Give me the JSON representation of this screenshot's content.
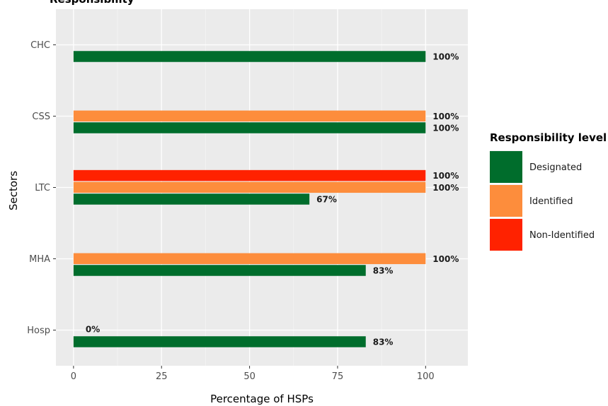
{
  "chart_data": {
    "type": "bar",
    "orientation": "horizontal",
    "title": "Responsibility",
    "xlabel": "Percentage of HSPs",
    "ylabel": "Sectors",
    "xlim": [
      -5,
      112
    ],
    "xticks": [
      0,
      25,
      50,
      75,
      100
    ],
    "categories": [
      "CHC",
      "CSS",
      "LTC",
      "MHA",
      "Hosp"
    ],
    "series": [
      {
        "name": "Designated",
        "color": "#006d2c",
        "values": [
          100,
          100,
          67,
          83,
          83
        ],
        "labels": [
          "100%",
          "100%",
          "67%",
          "83%",
          "83%"
        ]
      },
      {
        "name": "Identified",
        "color": "#fd8d3c",
        "values": [
          null,
          100,
          100,
          100,
          0
        ],
        "labels": [
          "",
          "100%",
          "100%",
          "100%",
          "0%"
        ]
      },
      {
        "name": "Non-Identified",
        "color": "#ff2200",
        "values": [
          null,
          null,
          100,
          null,
          null
        ],
        "labels": [
          "",
          "",
          "100%",
          "",
          ""
        ]
      }
    ],
    "grid": true,
    "legend": {
      "title": "Responsibility level",
      "position": "right"
    }
  }
}
